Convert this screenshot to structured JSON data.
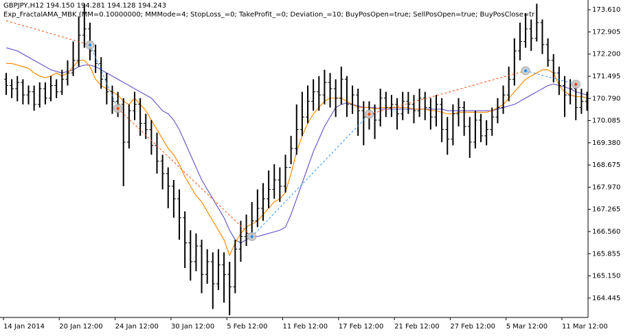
{
  "chart_data": {
    "type": "ohlc",
    "title": "GBPJPY,H12  194.150 194.281 194.128 194.243",
    "subtitle": "Exp_FractalAMA_MBK (MM=0.10000000; MMMode=4; StopLoss_=0; TakeProfit_=0; Deviation_=10; BuyPosOpen=true; SellPosOpen=true; BuyPosClose=tr",
    "color": "#000000",
    "categories": [
      "14 Jan 2014",
      null,
      null,
      null,
      null,
      null,
      null,
      null,
      null,
      null,
      "20 Jan 12:00",
      null,
      null,
      null,
      null,
      null,
      null,
      null,
      null,
      null,
      "24 Jan 12:00",
      null,
      null,
      null,
      null,
      null,
      null,
      null,
      null,
      null,
      "30 Jan 12:00",
      null,
      null,
      null,
      null,
      null,
      null,
      null,
      null,
      null,
      "5 Feb 12:00",
      null,
      null,
      null,
      null,
      null,
      null,
      null,
      null,
      null,
      "11 Feb 12:00",
      null,
      null,
      null,
      null,
      null,
      null,
      null,
      null,
      null,
      "17 Feb 12:00",
      null,
      null,
      null,
      null,
      null,
      null,
      null,
      null,
      null,
      "21 Feb 12:00",
      null,
      null,
      null,
      null,
      null,
      null,
      null,
      null,
      null,
      "27 Feb 12:00",
      null,
      null,
      null,
      null,
      null,
      null,
      null,
      null,
      null,
      "5 Mar 12:00",
      null,
      null,
      null,
      null,
      null,
      null,
      null,
      null,
      null,
      "11 Mar 12:00",
      null,
      null,
      null,
      null
    ],
    "open": [
      171.4,
      171.2,
      171.1,
      171.3,
      170.9,
      171.0,
      170.6,
      171.1,
      170.8,
      171.2,
      171.0,
      171.4,
      171.6,
      172.0,
      172.8,
      173.0,
      172.3,
      171.9,
      171.4,
      171.0,
      170.7,
      170.6,
      169.4,
      170.4,
      170.6,
      170.0,
      169.8,
      169.3,
      168.8,
      168.4,
      168.0,
      167.6,
      167.0,
      166.2,
      165.6,
      166.1,
      165.2,
      165.6,
      164.9,
      165.5,
      165.2,
      164.8,
      166.0,
      166.4,
      166.5,
      166.9,
      167.3,
      167.6,
      167.9,
      168.2,
      168.0,
      168.6,
      169.2,
      169.8,
      170.2,
      170.7,
      171.0,
      170.9,
      171.3,
      171.1,
      170.8,
      171.4,
      170.6,
      170.9,
      170.4,
      170.2,
      170.3,
      170.1,
      170.8,
      170.5,
      170.6,
      170.3,
      170.7,
      170.6,
      170.4,
      170.8,
      170.5,
      170.2,
      170.6,
      169.8,
      169.5,
      170.3,
      170.5,
      169.9,
      169.4,
      170.1,
      169.6,
      169.8,
      170.2,
      170.5,
      170.9,
      171.4,
      172.3,
      172.6,
      173.0,
      172.7,
      173.2,
      172.5,
      172.0,
      171.6,
      171.2,
      170.9,
      171.1,
      170.5,
      170.7
    ],
    "high": [
      171.6,
      171.4,
      171.5,
      171.4,
      171.2,
      171.2,
      171.3,
      171.3,
      171.5,
      171.4,
      171.7,
      172.0,
      172.6,
      173.4,
      173.8,
      173.2,
      172.5,
      172.1,
      171.6,
      171.2,
      171.0,
      170.8,
      170.6,
      171.0,
      170.8,
      170.3,
      170.1,
      169.7,
      169.0,
      168.6,
      168.2,
      167.9,
      167.2,
      166.6,
      166.5,
      166.3,
      166.0,
      165.9,
      166.0,
      165.9,
      165.6,
      166.3,
      166.9,
      167.1,
      167.5,
      167.9,
      168.1,
      168.5,
      168.7,
      168.6,
      169.0,
      169.6,
      170.6,
      171.0,
      171.2,
      171.4,
      171.5,
      171.7,
      171.6,
      171.4,
      171.8,
      171.5,
      171.2,
      171.1,
      170.7,
      170.7,
      170.6,
      171.1,
      171.0,
      170.9,
      170.8,
      171.0,
      171.0,
      170.9,
      171.1,
      171.0,
      170.8,
      170.9,
      170.8,
      170.2,
      170.6,
      170.8,
      170.7,
      170.2,
      170.4,
      170.3,
      170.1,
      170.5,
      170.8,
      171.2,
      171.8,
      172.7,
      173.2,
      173.5,
      173.3,
      173.8,
      173.3,
      172.7,
      172.2,
      171.8,
      171.5,
      171.4,
      171.3,
      171.1,
      171.0
    ],
    "low": [
      170.9,
      170.8,
      170.7,
      170.6,
      170.6,
      170.4,
      170.5,
      170.6,
      170.7,
      170.8,
      170.9,
      171.2,
      171.5,
      171.8,
      172.4,
      172.0,
      171.6,
      171.1,
      170.6,
      170.3,
      170.2,
      168.0,
      169.2,
      170.1,
      169.6,
      169.5,
      169.0,
      168.4,
      167.9,
      167.3,
      167.0,
      166.3,
      165.4,
      165.0,
      165.3,
      164.6,
      164.9,
      164.1,
      164.7,
      164.3,
      163.9,
      164.6,
      165.6,
      166.1,
      166.3,
      166.7,
      166.9,
      167.3,
      167.6,
      167.5,
      167.8,
      168.7,
      169.0,
      169.6,
      170.0,
      170.4,
      170.4,
      170.6,
      170.5,
      170.2,
      170.6,
      170.2,
      170.3,
      169.6,
      169.3,
      169.8,
      169.5,
      169.9,
      170.2,
      170.2,
      169.8,
      170.1,
      170.3,
      170.0,
      170.2,
      170.1,
      169.8,
      169.9,
      169.4,
      169.0,
      169.3,
      169.9,
      169.6,
      168.9,
      169.2,
      169.4,
      169.3,
      169.6,
      170.0,
      170.3,
      170.7,
      171.2,
      172.0,
      172.4,
      172.3,
      172.6,
      172.2,
      171.8,
      171.3,
      170.9,
      170.2,
      170.6,
      170.1,
      170.3,
      170.4
    ],
    "close": [
      171.2,
      171.1,
      171.3,
      170.9,
      171.0,
      170.6,
      171.1,
      170.8,
      171.2,
      171.0,
      171.4,
      171.6,
      172.0,
      172.8,
      173.0,
      172.3,
      171.9,
      171.4,
      171.0,
      170.7,
      170.6,
      169.4,
      170.4,
      170.6,
      170.0,
      169.8,
      169.3,
      168.8,
      168.4,
      168.0,
      167.6,
      167.0,
      166.2,
      165.6,
      166.1,
      165.2,
      165.6,
      164.9,
      165.5,
      165.2,
      164.8,
      166.0,
      166.4,
      166.5,
      166.9,
      167.3,
      167.6,
      167.9,
      168.2,
      168.0,
      168.6,
      169.2,
      169.8,
      170.2,
      170.7,
      171.0,
      170.9,
      171.3,
      171.1,
      170.8,
      171.4,
      170.6,
      170.9,
      170.4,
      170.2,
      170.3,
      170.1,
      170.8,
      170.5,
      170.6,
      170.3,
      170.7,
      170.6,
      170.4,
      170.8,
      170.5,
      170.2,
      170.6,
      169.8,
      169.5,
      170.3,
      170.5,
      169.9,
      169.4,
      170.1,
      169.6,
      169.8,
      170.2,
      170.5,
      170.9,
      171.4,
      172.3,
      172.6,
      173.0,
      172.7,
      173.2,
      172.5,
      172.0,
      171.6,
      171.2,
      170.9,
      171.1,
      170.5,
      170.7,
      170.8
    ],
    "lines": [
      {
        "color": "#6a5acd",
        "values": [
          172.4,
          172.35,
          172.3,
          172.2,
          172.1,
          172.0,
          171.9,
          171.8,
          171.7,
          171.65,
          171.6,
          171.65,
          171.7,
          171.8,
          171.85,
          171.85,
          171.8,
          171.7,
          171.6,
          171.5,
          171.4,
          171.3,
          171.2,
          171.1,
          171.0,
          170.9,
          170.8,
          170.6,
          170.4,
          170.3,
          170.1,
          169.8,
          169.4,
          169.0,
          168.6,
          168.2,
          167.9,
          167.6,
          167.3,
          167.0,
          166.6,
          166.3,
          166.2,
          166.3,
          166.4,
          166.4,
          166.45,
          166.5,
          166.55,
          166.6,
          166.7,
          167.1,
          167.6,
          168.1,
          168.6,
          169.1,
          169.5,
          169.9,
          170.2,
          170.5,
          170.6,
          170.65,
          170.6,
          170.55,
          170.5,
          170.5,
          170.5,
          170.45,
          170.45,
          170.45,
          170.45,
          170.45,
          170.45,
          170.45,
          170.45,
          170.45,
          170.45,
          170.45,
          170.45,
          170.4,
          170.4,
          170.4,
          170.4,
          170.4,
          170.4,
          170.4,
          170.4,
          170.4,
          170.45,
          170.5,
          170.55,
          170.6,
          170.7,
          170.8,
          170.9,
          171.0,
          171.1,
          171.2,
          171.25,
          171.2,
          171.15,
          171.1,
          171.0,
          170.95,
          170.9
        ]
      },
      {
        "color": "#ff8c00",
        "values": [
          171.9,
          171.9,
          171.85,
          171.8,
          171.75,
          171.6,
          171.5,
          171.45,
          171.5,
          171.6,
          171.5,
          171.6,
          171.8,
          172.0,
          172.0,
          171.8,
          171.4,
          171.2,
          171.1,
          171.0,
          170.9,
          170.7,
          170.6,
          170.8,
          170.6,
          170.4,
          170.1,
          169.8,
          169.5,
          169.2,
          169.0,
          168.7,
          168.3,
          168.0,
          167.7,
          167.5,
          167.2,
          166.9,
          166.6,
          166.3,
          165.8,
          166.2,
          166.5,
          166.7,
          166.8,
          166.9,
          167.1,
          167.3,
          167.5,
          167.6,
          167.8,
          168.4,
          169.1,
          169.6,
          170.0,
          170.3,
          170.5,
          170.7,
          170.8,
          170.8,
          170.8,
          170.7,
          170.6,
          170.5,
          170.5,
          170.5,
          170.45,
          170.5,
          170.5,
          170.5,
          170.5,
          170.5,
          170.5,
          170.45,
          170.45,
          170.45,
          170.4,
          170.4,
          170.35,
          170.3,
          170.3,
          170.35,
          170.35,
          170.35,
          170.35,
          170.35,
          170.35,
          170.4,
          170.5,
          170.6,
          170.8,
          171.0,
          171.2,
          171.4,
          171.5,
          171.6,
          171.7,
          171.7,
          171.6,
          171.2,
          171.0,
          170.9,
          170.85,
          170.85,
          170.8
        ]
      }
    ],
    "zigzag": [
      {
        "color": "#ff4500",
        "x": [
          0,
          15,
          null,
          20,
          44,
          null,
          65,
          93
        ],
        "values": [
          173.26,
          172.49,
          null,
          170.47,
          166.4,
          null,
          170.29,
          171.67
        ]
      },
      {
        "color": "#1e90ff",
        "x": [
          15,
          20,
          null,
          44,
          65,
          null,
          93,
          102
        ],
        "values": [
          172.49,
          170.47,
          null,
          166.4,
          170.29,
          null,
          171.67,
          171.24
        ]
      }
    ],
    "ylim": [
      163.83,
      173.918
    ],
    "yticks": [
      {
        "value": 173.61,
        "label": "173.610"
      },
      {
        "value": 172.905,
        "label": "172.905"
      },
      {
        "value": 172.2,
        "label": "172.200"
      },
      {
        "value": 171.495,
        "label": "171.495"
      },
      {
        "value": 170.79,
        "label": "170.790"
      },
      {
        "value": 170.085,
        "label": "170.085"
      },
      {
        "value": 169.38,
        "label": "169.380"
      },
      {
        "value": 168.675,
        "label": "168.675"
      },
      {
        "value": 167.97,
        "label": "167.970"
      },
      {
        "value": 167.265,
        "label": "167.265"
      },
      {
        "value": 166.56,
        "label": "166.560"
      },
      {
        "value": 165.855,
        "label": "165.855"
      },
      {
        "value": 165.15,
        "label": "165.150"
      },
      {
        "value": 164.445,
        "label": "164.445"
      }
    ]
  }
}
